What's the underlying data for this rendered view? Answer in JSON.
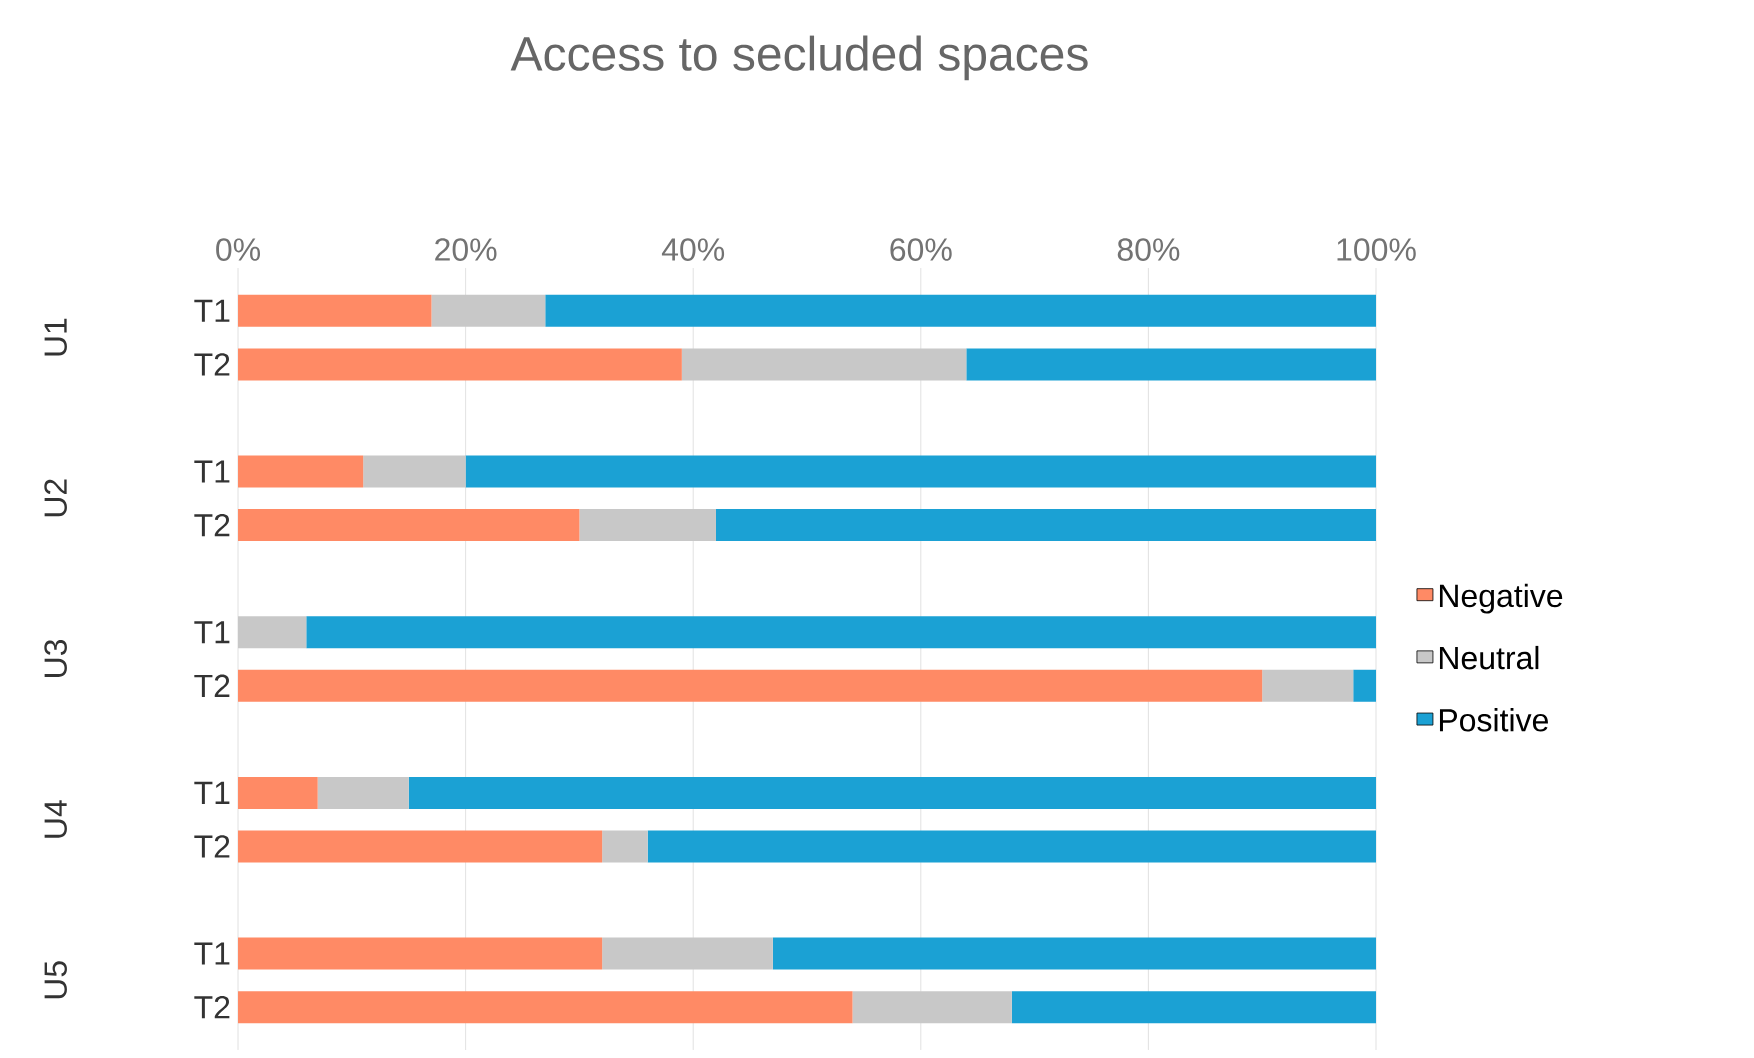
{
  "chart_data": {
    "type": "bar",
    "orientation": "horizontal",
    "stacked": true,
    "title": "Access to secluded spaces",
    "categories": [
      "T1",
      "T2",
      "T1",
      "T2",
      "T1",
      "T2",
      "T1",
      "T2",
      "T1",
      "T2"
    ],
    "series": [
      {
        "name": "Negative",
        "color": "#ff8a65",
        "values": [
          17,
          39,
          11,
          30,
          0,
          90,
          7,
          32,
          32,
          54
        ]
      },
      {
        "name": "Neutral",
        "color": "#c8c8c8",
        "values": [
          10,
          25,
          9,
          12,
          6,
          8,
          8,
          4,
          15,
          14
        ]
      },
      {
        "name": "Positive",
        "color": "#1ba1d4",
        "values": [
          73,
          36,
          80,
          58,
          94,
          2,
          85,
          64,
          53,
          32
        ]
      }
    ],
    "annotations": [
      "U1",
      "U2",
      "U3",
      "U4",
      "U5"
    ],
    "xlim": [
      0,
      100
    ],
    "xticks": [
      {
        "value": 0,
        "label": "0%"
      },
      {
        "value": 20,
        "label": "20%"
      },
      {
        "value": 40,
        "label": "40%"
      },
      {
        "value": 60,
        "label": "60%"
      },
      {
        "value": 80,
        "label": "80%"
      },
      {
        "value": 100,
        "label": "100%"
      }
    ],
    "grid": "x",
    "legend": "right"
  }
}
